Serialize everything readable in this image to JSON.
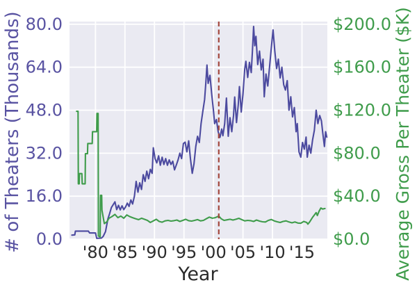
{
  "chart_data": {
    "type": "line",
    "title": "",
    "xlabel": "Year",
    "ylabel_left": "# of Theaters (Thousands)",
    "ylabel_right": "Average Gross Per Theater ($K)",
    "grid": true,
    "legend": "none",
    "xlim": [
      1975.6,
      2019.3
    ],
    "ylim_left": [
      0,
      81
    ],
    "ylim_right": [
      0,
      202.5
    ],
    "x_ticks": {
      "values": [
        1980,
        1985,
        1990,
        1995,
        2000,
        2005,
        2010,
        2015
      ],
      "labels": [
        "'80",
        "'85",
        "'90",
        "'95",
        "'00",
        "'05",
        "'10",
        "'15"
      ]
    },
    "y_ticks_left": {
      "values": [
        0,
        16,
        32,
        48,
        64,
        80
      ],
      "labels": [
        "0.0",
        "16.0",
        "32.0",
        "48.0",
        "64.0",
        "80.0"
      ]
    },
    "y_ticks_right": {
      "values": [
        0,
        40,
        80,
        120,
        160,
        200
      ],
      "labels": [
        "$0.0",
        "$40.0",
        "$80.0",
        "$120.0",
        "$160.0",
        "$200.0"
      ]
    },
    "vline": {
      "x": 2000.9,
      "style": "dashed",
      "color": "#a3473d"
    },
    "colors": {
      "plot_background": "#eaeaf2",
      "figure_background": "#ffffff",
      "grid": "#ffffff",
      "left_axis": "#5953a2",
      "right_axis": "#3f9c4b",
      "x_axis_text": "#2b2b2b",
      "theaters_line": "#4c4a9f",
      "gross_line": "#3f9c4b"
    },
    "series": [
      {
        "name": "# of Theaters (Thousands)",
        "axis": "left",
        "color": "#4c4a9f",
        "points": [
          [
            1976.0,
            1.5
          ],
          [
            1976.5,
            1.6
          ],
          [
            1976.6,
            3.0
          ],
          [
            1978.8,
            3.0
          ],
          [
            1979.0,
            2.3
          ],
          [
            1980.0,
            2.3
          ],
          [
            1980.2,
            0.3
          ],
          [
            1981.0,
            0.4
          ],
          [
            1981.3,
            1.0
          ],
          [
            1981.7,
            2.8
          ],
          [
            1982.1,
            7.5
          ],
          [
            1982.4,
            9.5
          ],
          [
            1982.7,
            11.8
          ],
          [
            1983.0,
            12.8
          ],
          [
            1983.3,
            13.9
          ],
          [
            1983.6,
            11.0
          ],
          [
            1983.9,
            12.6
          ],
          [
            1984.2,
            10.9
          ],
          [
            1984.5,
            12.4
          ],
          [
            1984.8,
            11.0
          ],
          [
            1985.1,
            12.0
          ],
          [
            1985.4,
            13.4
          ],
          [
            1985.7,
            12.2
          ],
          [
            1986.0,
            14.6
          ],
          [
            1986.3,
            13.1
          ],
          [
            1986.6,
            16.0
          ],
          [
            1986.9,
            21.5
          ],
          [
            1987.2,
            17.5
          ],
          [
            1987.5,
            21.0
          ],
          [
            1987.8,
            18.5
          ],
          [
            1988.1,
            24.0
          ],
          [
            1988.4,
            21.5
          ],
          [
            1988.7,
            25.3
          ],
          [
            1989.0,
            22.5
          ],
          [
            1989.3,
            26.0
          ],
          [
            1989.6,
            24.5
          ],
          [
            1989.8,
            34.0
          ],
          [
            1990.1,
            30.0
          ],
          [
            1990.4,
            28.4
          ],
          [
            1990.7,
            31.0
          ],
          [
            1991.0,
            27.5
          ],
          [
            1991.3,
            30.5
          ],
          [
            1991.6,
            27.8
          ],
          [
            1991.9,
            30.0
          ],
          [
            1992.2,
            27.5
          ],
          [
            1992.5,
            29.5
          ],
          [
            1992.8,
            27.8
          ],
          [
            1993.1,
            29.0
          ],
          [
            1993.4,
            25.8
          ],
          [
            1993.7,
            27.6
          ],
          [
            1994.0,
            29.5
          ],
          [
            1994.3,
            32.0
          ],
          [
            1994.6,
            30.0
          ],
          [
            1994.9,
            35.6
          ],
          [
            1995.2,
            36.1
          ],
          [
            1995.5,
            32.5
          ],
          [
            1995.8,
            36.6
          ],
          [
            1996.1,
            30.0
          ],
          [
            1996.4,
            24.5
          ],
          [
            1996.7,
            28.0
          ],
          [
            1997.0,
            34.5
          ],
          [
            1997.3,
            38.3
          ],
          [
            1997.6,
            36.0
          ],
          [
            1997.9,
            43.0
          ],
          [
            1998.2,
            47.7
          ],
          [
            1998.5,
            52.0
          ],
          [
            1998.7,
            58.0
          ],
          [
            1998.9,
            64.8
          ],
          [
            1999.1,
            58.0
          ],
          [
            1999.4,
            61.0
          ],
          [
            1999.7,
            54.0
          ],
          [
            2000.0,
            48.0
          ],
          [
            2000.2,
            43.0
          ],
          [
            2000.5,
            44.5
          ],
          [
            2000.8,
            40.0
          ],
          [
            2001.1,
            37.9
          ],
          [
            2001.4,
            41.0
          ],
          [
            2001.6,
            38.5
          ],
          [
            2001.9,
            43.0
          ],
          [
            2002.2,
            52.5
          ],
          [
            2002.5,
            38.3
          ],
          [
            2002.8,
            45.2
          ],
          [
            2003.1,
            40.0
          ],
          [
            2003.4,
            46.0
          ],
          [
            2003.6,
            52.9
          ],
          [
            2003.9,
            43.4
          ],
          [
            2004.2,
            50.0
          ],
          [
            2004.4,
            56.8
          ],
          [
            2004.7,
            47.3
          ],
          [
            2005.0,
            54.0
          ],
          [
            2005.3,
            63.2
          ],
          [
            2005.5,
            66.2
          ],
          [
            2005.8,
            60.2
          ],
          [
            2006.1,
            65.8
          ],
          [
            2006.4,
            62.0
          ],
          [
            2006.6,
            70.0
          ],
          [
            2006.8,
            79.2
          ],
          [
            2007.0,
            72.0
          ],
          [
            2007.2,
            75.5
          ],
          [
            2007.5,
            65.0
          ],
          [
            2007.8,
            70.0
          ],
          [
            2008.1,
            63.0
          ],
          [
            2008.4,
            67.0
          ],
          [
            2008.6,
            53.0
          ],
          [
            2008.9,
            61.5
          ],
          [
            2009.2,
            57.0
          ],
          [
            2009.5,
            64.0
          ],
          [
            2009.8,
            71.0
          ],
          [
            2010.1,
            77.9
          ],
          [
            2010.4,
            70.0
          ],
          [
            2010.7,
            63.5
          ],
          [
            2011.0,
            67.0
          ],
          [
            2011.3,
            60.0
          ],
          [
            2011.6,
            64.0
          ],
          [
            2011.9,
            57.5
          ],
          [
            2012.2,
            55.5
          ],
          [
            2012.5,
            59.0
          ],
          [
            2012.8,
            48.0
          ],
          [
            2013.1,
            53.0
          ],
          [
            2013.4,
            45.5
          ],
          [
            2013.7,
            49.0
          ],
          [
            2014.0,
            40.0
          ],
          [
            2014.2,
            43.0
          ],
          [
            2014.5,
            32.5
          ],
          [
            2014.8,
            30.5
          ],
          [
            2015.1,
            36.0
          ],
          [
            2015.4,
            33.5
          ],
          [
            2015.7,
            38.0
          ],
          [
            2015.9,
            30.5
          ],
          [
            2016.2,
            35.0
          ],
          [
            2016.5,
            32.0
          ],
          [
            2016.8,
            37.0
          ],
          [
            2017.1,
            40.5
          ],
          [
            2017.4,
            48.0
          ],
          [
            2017.7,
            43.0
          ],
          [
            2018.0,
            46.0
          ],
          [
            2018.3,
            44.0
          ],
          [
            2018.5,
            40.0
          ],
          [
            2018.8,
            34.5
          ],
          [
            2019.0,
            40.0
          ],
          [
            2019.2,
            38.0
          ]
        ]
      },
      {
        "name": "Average Gross Per Theater ($K)",
        "axis": "right",
        "color": "#3f9c4b",
        "points": [
          [
            1976.8,
            119
          ],
          [
            1977.05,
            119
          ],
          [
            1977.1,
            51.5
          ],
          [
            1977.25,
            51.5
          ],
          [
            1977.3,
            61
          ],
          [
            1977.7,
            61
          ],
          [
            1977.75,
            51.5
          ],
          [
            1978.25,
            51.5
          ],
          [
            1978.3,
            79.5
          ],
          [
            1978.65,
            79.5
          ],
          [
            1978.7,
            89
          ],
          [
            1979.45,
            89
          ],
          [
            1979.5,
            100
          ],
          [
            1980.2,
            100
          ],
          [
            1980.25,
            117
          ],
          [
            1980.45,
            117
          ],
          [
            1980.5,
            3
          ],
          [
            1980.8,
            2
          ],
          [
            1980.85,
            40.8
          ],
          [
            1981.05,
            40.8
          ],
          [
            1981.1,
            27
          ],
          [
            1981.5,
            14.5
          ],
          [
            1981.9,
            16
          ],
          [
            1982.3,
            19.5
          ],
          [
            1982.8,
            21
          ],
          [
            1983.3,
            23
          ],
          [
            1983.8,
            20
          ],
          [
            1984.3,
            21.5
          ],
          [
            1984.8,
            19.5
          ],
          [
            1985.3,
            22.5
          ],
          [
            1985.8,
            21
          ],
          [
            1986.3,
            20
          ],
          [
            1986.8,
            19
          ],
          [
            1987.3,
            18.2
          ],
          [
            1987.8,
            19.5
          ],
          [
            1988.3,
            18.5
          ],
          [
            1988.8,
            17.5
          ],
          [
            1989.3,
            15.5
          ],
          [
            1989.8,
            17
          ],
          [
            1990.3,
            18.5
          ],
          [
            1990.8,
            16.5
          ],
          [
            1991.3,
            15.8
          ],
          [
            1991.8,
            17
          ],
          [
            1992.3,
            17.5
          ],
          [
            1992.8,
            16.8
          ],
          [
            1993.3,
            17.2
          ],
          [
            1993.8,
            17.8
          ],
          [
            1994.3,
            16.5
          ],
          [
            1994.8,
            17.5
          ],
          [
            1995.3,
            18.5
          ],
          [
            1995.8,
            17.2
          ],
          [
            1996.3,
            16.8
          ],
          [
            1996.8,
            17.5
          ],
          [
            1997.3,
            18.2
          ],
          [
            1997.8,
            17.0
          ],
          [
            1998.3,
            17.5
          ],
          [
            1998.8,
            19.0
          ],
          [
            1999.3,
            20.5
          ],
          [
            1999.8,
            19.5
          ],
          [
            2000.3,
            20.0
          ],
          [
            2000.9,
            21.5
          ],
          [
            2001.3,
            19.0
          ],
          [
            2001.8,
            17.5
          ],
          [
            2002.3,
            18.0
          ],
          [
            2002.8,
            18.5
          ],
          [
            2003.3,
            17.8
          ],
          [
            2003.8,
            18.5
          ],
          [
            2004.3,
            19.4
          ],
          [
            2004.8,
            18.2
          ],
          [
            2005.3,
            17.0
          ],
          [
            2005.8,
            17.5
          ],
          [
            2006.3,
            17.2
          ],
          [
            2006.8,
            16.5
          ],
          [
            2007.3,
            17.8
          ],
          [
            2007.8,
            16.8
          ],
          [
            2008.3,
            16.2
          ],
          [
            2008.8,
            16.0
          ],
          [
            2009.3,
            17.5
          ],
          [
            2009.8,
            18.3
          ],
          [
            2010.3,
            17.0
          ],
          [
            2010.8,
            16.2
          ],
          [
            2011.3,
            15.5
          ],
          [
            2011.8,
            16.5
          ],
          [
            2012.3,
            17.0
          ],
          [
            2012.8,
            16.0
          ],
          [
            2013.3,
            15.2
          ],
          [
            2013.8,
            16.0
          ],
          [
            2014.3,
            15.0
          ],
          [
            2014.8,
            14.8
          ],
          [
            2015.3,
            16.5
          ],
          [
            2015.8,
            15.5
          ],
          [
            2016.0,
            14.0
          ],
          [
            2016.3,
            16.0
          ],
          [
            2016.8,
            20.4
          ],
          [
            2017.1,
            22.5
          ],
          [
            2017.4,
            24.7
          ],
          [
            2017.6,
            22.0
          ],
          [
            2017.9,
            26.0
          ],
          [
            2018.2,
            29.0
          ],
          [
            2018.5,
            28.0
          ],
          [
            2018.9,
            28.5
          ]
        ]
      }
    ]
  }
}
